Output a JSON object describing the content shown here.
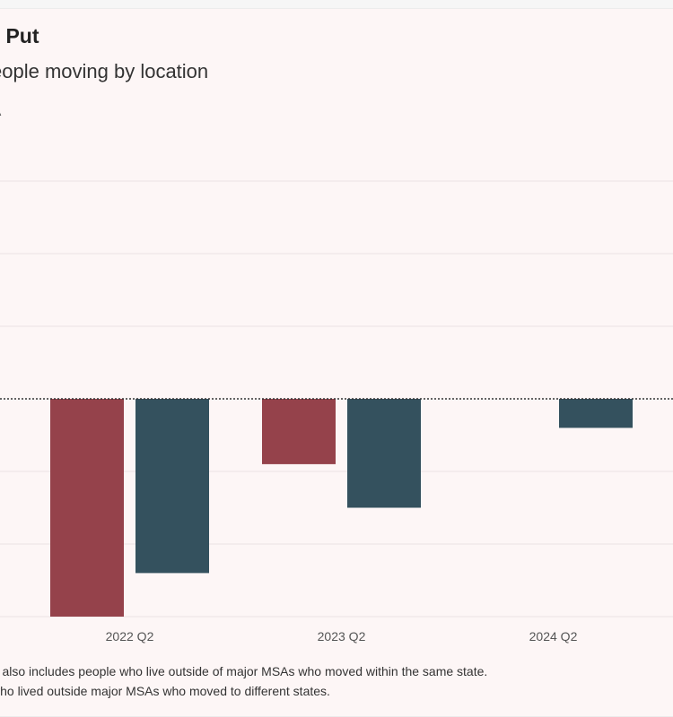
{
  "header": {
    "title": "g Put",
    "subtitle": "eople moving by location",
    "ylabel": "A"
  },
  "footnotes": [
    "A also includes people who live outside of major MSAs who moved within the same state.",
    "who lived outside major MSAs who moved to different states."
  ],
  "colors": {
    "series_a": "#95424b",
    "series_b": "#34515e",
    "gridline": "#ece3e4",
    "zero_line": "#333333"
  },
  "chart_data": {
    "type": "bar",
    "categories": [
      "2022 Q2",
      "2023 Q2",
      "2024 Q2"
    ],
    "series": [
      {
        "values": [
          -3.0,
          -0.9,
          0
        ]
      },
      {
        "values": [
          -2.4,
          -1.5,
          -0.4
        ]
      }
    ],
    "ylim": [
      -3.0,
      3.0
    ],
    "grid": true,
    "zero_line": "dotted"
  }
}
